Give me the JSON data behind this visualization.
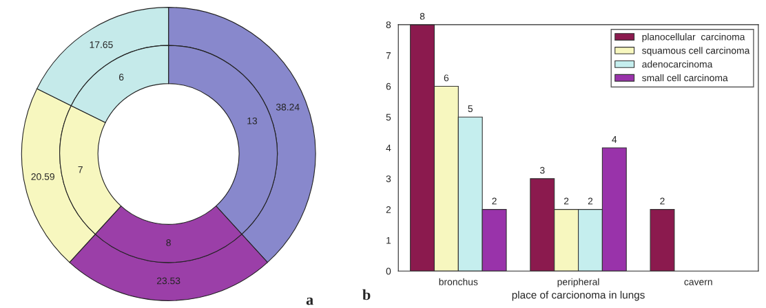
{
  "chart_data": [
    {
      "type": "donut",
      "categories": [
        null,
        null,
        null,
        null
      ],
      "colors": [
        "#8888cc",
        "#9b3fa8",
        "#f7f7bf",
        "#c5eaea"
      ],
      "series": [
        {
          "values": [
            38.24,
            23.53,
            20.59,
            17.65
          ]
        },
        {
          "values": [
            13,
            8,
            7,
            6
          ]
        }
      ],
      "data_labels": true,
      "annotations": [
        "a"
      ]
    },
    {
      "type": "bar",
      "categories": [
        "bronchus",
        "peripheral",
        "cavern"
      ],
      "xlabel": "place of carcionoma in lungs",
      "series": [
        {
          "name": "planocellular  carcinoma",
          "color": "#8b1a4e",
          "values": [
            8,
            3,
            2
          ]
        },
        {
          "name": "squamous cell carcinoma",
          "color": "#f7f7bf",
          "values": [
            6,
            2,
            null
          ]
        },
        {
          "name": "adenocarcinoma",
          "color": "#c5eeee",
          "values": [
            5,
            2,
            null
          ]
        },
        {
          "name": "small cell carcinoma",
          "color": "#9933aa",
          "values": [
            2,
            4,
            null
          ]
        }
      ],
      "ylim": [
        0,
        8
      ],
      "yticks": [
        0,
        1,
        2,
        3,
        4,
        5,
        6,
        7,
        8
      ],
      "grid": false,
      "legend": "top right",
      "data_labels": true,
      "annotations": [
        "b"
      ]
    }
  ]
}
